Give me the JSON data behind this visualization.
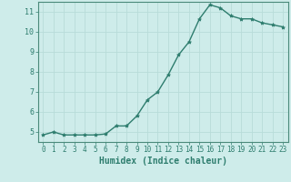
{
  "x": [
    0,
    1,
    2,
    3,
    4,
    5,
    6,
    7,
    8,
    9,
    10,
    11,
    12,
    13,
    14,
    15,
    16,
    17,
    18,
    19,
    20,
    21,
    22,
    23
  ],
  "y": [
    4.85,
    5.0,
    4.85,
    4.85,
    4.85,
    4.85,
    4.9,
    5.3,
    5.3,
    5.8,
    6.6,
    7.0,
    7.85,
    8.85,
    9.5,
    10.65,
    11.35,
    11.2,
    10.8,
    10.65,
    10.65,
    10.45,
    10.35,
    10.25
  ],
  "line_color": "#2e7d6e",
  "marker": "*",
  "marker_size": 3,
  "bg_color": "#ceecea",
  "grid_color": "#b8dcd9",
  "axis_color": "#2e7d6e",
  "xlabel": "Humidex (Indice chaleur)",
  "xlim": [
    -0.5,
    23.5
  ],
  "ylim": [
    4.5,
    11.5
  ],
  "yticks": [
    5,
    6,
    7,
    8,
    9,
    10,
    11
  ],
  "xticks": [
    0,
    1,
    2,
    3,
    4,
    5,
    6,
    7,
    8,
    9,
    10,
    11,
    12,
    13,
    14,
    15,
    16,
    17,
    18,
    19,
    20,
    21,
    22,
    23
  ],
  "tick_labelsize": 6,
  "xlabel_fontsize": 7,
  "line_width": 1.0,
  "spine_color": "#4a8a7a"
}
